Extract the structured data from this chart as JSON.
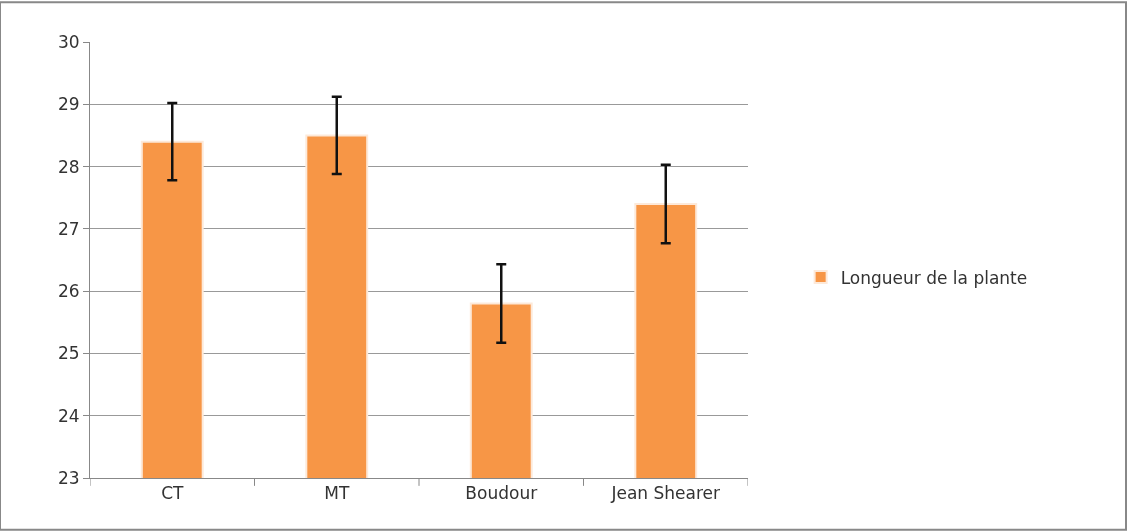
{
  "chart_data": {
    "type": "bar",
    "categories": [
      "CT",
      "MT",
      "Boudour",
      "Jean Shearer"
    ],
    "series": [
      {
        "name": "Longueur de la plante",
        "color": "#f79646",
        "values": [
          28.4,
          28.5,
          25.8,
          27.4
        ],
        "errors": [
          0.62,
          0.62,
          0.63,
          0.63
        ]
      }
    ],
    "ylim": [
      23,
      30
    ],
    "yticks": [
      23,
      24,
      25,
      26,
      27,
      28,
      29,
      30
    ],
    "grid": "y",
    "legend": "right"
  }
}
